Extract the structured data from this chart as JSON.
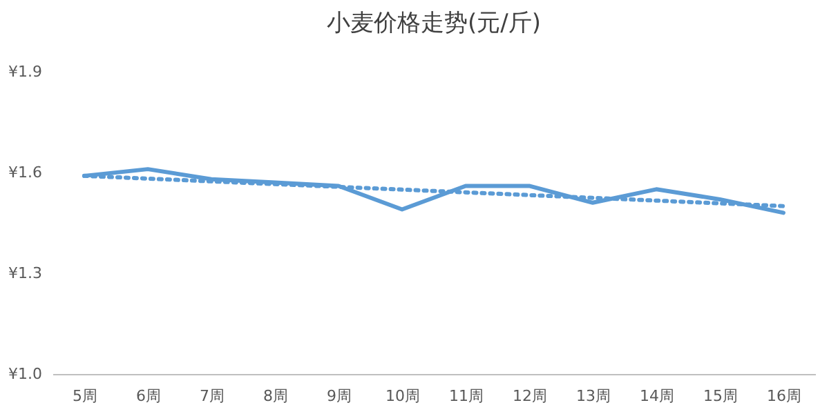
{
  "chart_data": {
    "type": "line",
    "title": "小麦价格走势(元/斤)",
    "categories": [
      "5周",
      "6周",
      "7周",
      "8周",
      "9周",
      "10周",
      "11周",
      "12周",
      "13周",
      "14周",
      "15周",
      "16周"
    ],
    "series": [
      {
        "color": "#5b9bd5",
        "values": [
          1.59,
          1.61,
          1.58,
          1.57,
          1.56,
          1.49,
          1.56,
          1.56,
          1.51,
          1.55,
          1.52,
          1.48
        ]
      },
      {
        "type": "line",
        "x": [
          "5周",
          "16周"
        ],
        "color": "#5b9bd5",
        "line_style": "dotted",
        "values": [
          1.59,
          1.5
        ]
      }
    ],
    "ylim": [
      1.0,
      1.9
    ],
    "yticks": [
      {
        "value": 1.0,
        "label": "¥1.0"
      },
      {
        "value": 1.3,
        "label": "¥1.3"
      },
      {
        "value": 1.6,
        "label": "¥1.6"
      },
      {
        "value": 1.9,
        "label": "¥1.9"
      }
    ],
    "grid": false,
    "marker": "none"
  }
}
